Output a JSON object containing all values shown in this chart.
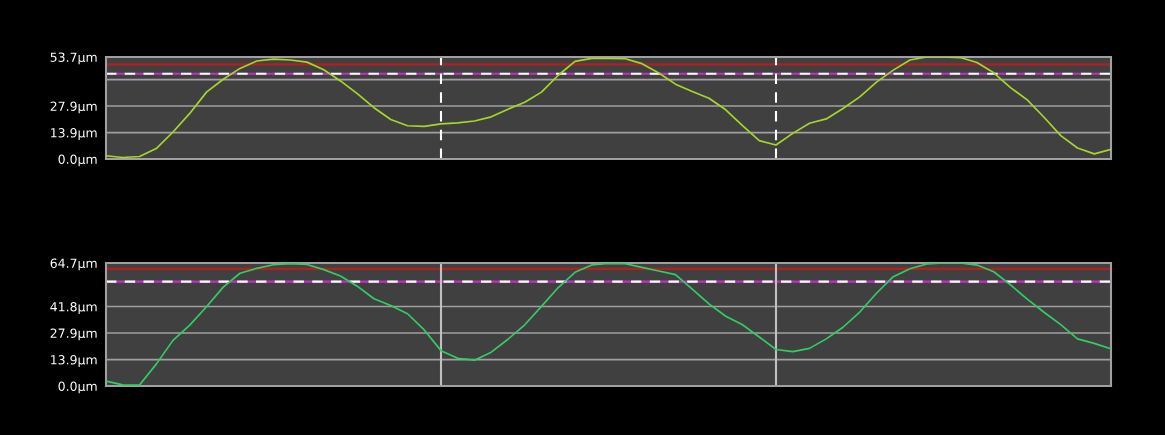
{
  "chart_data": [
    {
      "type": "line",
      "ylim": [
        0,
        53.7
      ],
      "tick_labels": "y",
      "grid": "y",
      "marker": "none",
      "line_style": "solid",
      "categories": [
        null,
        null,
        null,
        null,
        null,
        null,
        null,
        null,
        null,
        null,
        null,
        null,
        null,
        null,
        null,
        null,
        null,
        null,
        null,
        null,
        null,
        null,
        null,
        null,
        null,
        null,
        null,
        null,
        null,
        null,
        null,
        null,
        null,
        null,
        null,
        null,
        null,
        null,
        null,
        null,
        null,
        null,
        null,
        null,
        null,
        null,
        null,
        null,
        null,
        null,
        null,
        null,
        null,
        null,
        null,
        null,
        null,
        null,
        null,
        null,
        null
      ],
      "yticks": [
        {
          "value": 0,
          "label": "0.0µm"
        },
        {
          "value": 13.9,
          "label": "13.9µm"
        },
        {
          "value": 27.9,
          "label": "27.9µm"
        },
        {
          "value": 41.8,
          "label": null
        },
        {
          "value": 53.7,
          "label": "53.7µm"
        }
      ],
      "series": [
        {
          "color": "#a6d62a",
          "values": [
            1.7,
            0.8,
            1.3,
            5.5,
            14.2,
            24,
            35.2,
            42,
            47.7,
            51.6,
            52.6,
            52.1,
            51,
            47,
            41.1,
            34.4,
            27,
            20.8,
            17.5,
            17.2,
            18.5,
            19,
            20,
            22.2,
            26.2,
            29.9,
            35.2,
            44.1,
            51.4,
            53,
            53,
            52.8,
            50.2,
            45.3,
            39.4,
            35.5,
            32,
            25.9,
            17.6,
            9.7,
            7.4,
            13.5,
            18.8,
            21.1,
            26.6,
            32.7,
            40.5,
            46.8,
            52.1,
            53.7,
            53.7,
            53.4,
            50.8,
            45.4,
            37.6,
            31.1,
            22,
            12.3,
            5.8,
            2.7,
            5.1
          ]
        }
      ],
      "ref_lines": [
        {
          "axis": "y",
          "value": 49.8,
          "color": "#b02020",
          "line_style": "solid"
        },
        {
          "axis": "y",
          "value": 44.9,
          "color": "#c030c0",
          "line_style": "solid"
        },
        {
          "axis": "y",
          "value": 44.9,
          "color": "#ffffff",
          "line_style": "dashed"
        }
      ]
    },
    {
      "type": "line",
      "ylim": [
        0,
        64.7
      ],
      "tick_labels": "y",
      "grid": "y",
      "marker": "none",
      "line_style": "solid",
      "categories": [
        null,
        null,
        null,
        null,
        null,
        null,
        null,
        null,
        null,
        null,
        null,
        null,
        null,
        null,
        null,
        null,
        null,
        null,
        null,
        null,
        null,
        null,
        null,
        null,
        null,
        null,
        null,
        null,
        null,
        null,
        null,
        null,
        null,
        null,
        null,
        null,
        null,
        null,
        null,
        null,
        null,
        null,
        null,
        null,
        null,
        null,
        null,
        null,
        null,
        null,
        null,
        null,
        null,
        null,
        null,
        null,
        null,
        null,
        null,
        null,
        null
      ],
      "yticks": [
        {
          "value": 0,
          "label": "0.0µm"
        },
        {
          "value": 13.9,
          "label": "13.9µm"
        },
        {
          "value": 27.9,
          "label": "27.9µm"
        },
        {
          "value": 41.8,
          "label": "41.8µm"
        },
        {
          "value": 64.7,
          "label": "64.7µm"
        }
      ],
      "series": [
        {
          "color": "#33cc66",
          "values": [
            2.6,
            0.6,
            0.5,
            11.5,
            24,
            32,
            41.7,
            52,
            59.3,
            61.9,
            63.8,
            64.4,
            63.9,
            61.2,
            57.9,
            52.5,
            45.9,
            42.3,
            38,
            29.5,
            18.6,
            14.6,
            13.6,
            17.8,
            24.6,
            32.2,
            41.9,
            51.8,
            59.8,
            63.7,
            64.5,
            64.3,
            62.4,
            60.5,
            58.6,
            51,
            43.2,
            36.7,
            32.2,
            25.8,
            19.2,
            18.1,
            19.8,
            24.8,
            30.9,
            38.9,
            48.8,
            57.5,
            61.7,
            64.2,
            64.7,
            64.7,
            63.6,
            60.1,
            53.2,
            45.7,
            38.8,
            32.3,
            24.8,
            22.4,
            19.5
          ]
        }
      ],
      "ref_lines": [
        {
          "axis": "y",
          "value": 61.6,
          "color": "#b02020",
          "line_style": "solid"
        },
        {
          "axis": "y",
          "value": 54.9,
          "color": "#c030c0",
          "line_style": "solid"
        },
        {
          "axis": "y",
          "value": 54.9,
          "color": "#ffffff",
          "line_style": "dashed"
        }
      ]
    }
  ]
}
